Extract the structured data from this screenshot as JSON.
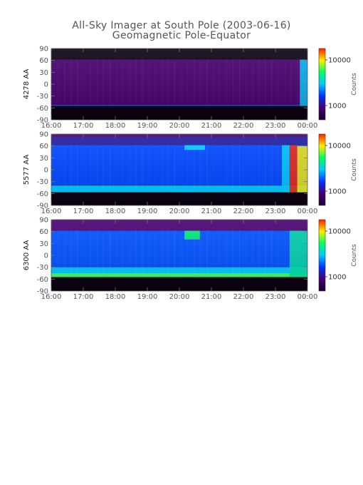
{
  "figure": {
    "title_line1": "All-Sky Imager at South Pole (2003-06-16)",
    "title_line2": "Geomagnetic Pole-Equator"
  },
  "colors": {
    "bg_dark": "#0a0010",
    "purple": "#46006e",
    "blue": "#0050ff",
    "cyan": "#00c8ff",
    "green": "#00ff60",
    "yellow": "#ffee00",
    "red": "#ff2000"
  },
  "chart_data": [
    {
      "type": "heatmap",
      "ylabel": "4278 AA",
      "colorbar_label": "Counts",
      "colorbar_ticks": [
        "10000",
        "1000"
      ],
      "x_ticks": [
        "16:00",
        "17:00",
        "18:00",
        "19:00",
        "20:00",
        "21:00",
        "22:00",
        "23:00",
        "00:00"
      ],
      "y_ticks": [
        "90",
        "60",
        "30",
        "0",
        "-30",
        "-60",
        "-90"
      ],
      "ylim": [
        -90,
        90
      ],
      "colorbar_colors": [
        "#1a0030",
        "#46006e",
        "#0032ff",
        "#00c8ff",
        "#00ff60",
        "#ffee00",
        "#ff2000"
      ],
      "bands": [
        {
          "from": 90,
          "to": 62,
          "color": "#0a0010"
        },
        {
          "from": 62,
          "to": -52,
          "color": "#46006e"
        },
        {
          "from": -52,
          "to": -55,
          "color": "#0050ff"
        },
        {
          "from": -55,
          "to": -90,
          "color": "#0a0010"
        }
      ],
      "events": [
        {
          "x": 0.97,
          "width": 0.03,
          "from": 62,
          "to": -55,
          "color": "#00c8ff"
        }
      ]
    },
    {
      "type": "heatmap",
      "ylabel": "5577 AA",
      "colorbar_label": "Counts",
      "colorbar_ticks": [
        "10000",
        "1000"
      ],
      "x_ticks": [
        "16:00",
        "17:00",
        "18:00",
        "19:00",
        "20:00",
        "21:00",
        "22:00",
        "23:00",
        "00:00"
      ],
      "y_ticks": [
        "90",
        "60",
        "30",
        "0",
        "-30",
        "-60",
        "-90"
      ],
      "ylim": [
        -90,
        90
      ],
      "colorbar_colors": [
        "#1a0030",
        "#46006e",
        "#0032ff",
        "#00c8ff",
        "#00ff60",
        "#ffee00",
        "#ff2000"
      ],
      "bands": [
        {
          "from": 90,
          "to": 82,
          "color": "#46006e"
        },
        {
          "from": 82,
          "to": 62,
          "color": "#1e1aa0"
        },
        {
          "from": 62,
          "to": -40,
          "color": "#0046ff"
        },
        {
          "from": -40,
          "to": -57,
          "color": "#00c8ff"
        },
        {
          "from": -57,
          "to": -90,
          "color": "#0a0010"
        }
      ],
      "events": [
        {
          "x": 0.52,
          "width": 0.08,
          "from": 62,
          "to": 50,
          "color": "#00e0ff"
        },
        {
          "x": 0.9,
          "width": 0.03,
          "from": 62,
          "to": -57,
          "color": "#00d0ff"
        },
        {
          "x": 0.93,
          "width": 0.03,
          "from": 62,
          "to": -57,
          "color": "#ff2000"
        },
        {
          "x": 0.96,
          "width": 0.04,
          "from": 60,
          "to": -57,
          "color": "#ffee00"
        }
      ]
    },
    {
      "type": "heatmap",
      "ylabel": "6300 AA",
      "colorbar_label": "Counts",
      "colorbar_ticks": [
        "10000",
        "1000"
      ],
      "x_ticks": [
        "16:00",
        "17:00",
        "18:00",
        "19:00",
        "20:00",
        "21:00",
        "22:00",
        "23:00",
        "00:00"
      ],
      "y_ticks": [
        "90",
        "60",
        "30",
        "0",
        "-30",
        "-60",
        "-90"
      ],
      "ylim": [
        -90,
        90
      ],
      "colorbar_colors": [
        "#1a0030",
        "#46006e",
        "#0032ff",
        "#00c8ff",
        "#00ff60",
        "#ffee00",
        "#ff2000"
      ],
      "bands": [
        {
          "from": 90,
          "to": 62,
          "color": "#46006e"
        },
        {
          "from": 62,
          "to": -30,
          "color": "#0050ff"
        },
        {
          "from": -30,
          "to": -45,
          "color": "#00c8ff"
        },
        {
          "from": -45,
          "to": -55,
          "color": "#40ff60"
        },
        {
          "from": -55,
          "to": -90,
          "color": "#0a0010"
        }
      ],
      "events": [
        {
          "x": 0.52,
          "width": 0.06,
          "from": 62,
          "to": 40,
          "color": "#00ff60"
        },
        {
          "x": 0.93,
          "width": 0.07,
          "from": 62,
          "to": -55,
          "color": "#00e0a0"
        }
      ]
    }
  ]
}
